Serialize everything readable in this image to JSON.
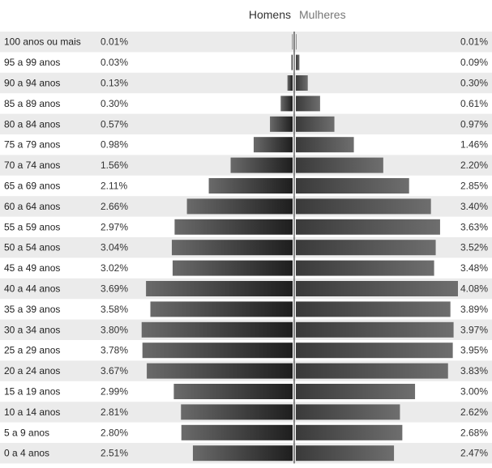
{
  "legend": {
    "male": "Homens",
    "female": "Mulheres"
  },
  "chart_data": {
    "type": "bar",
    "orientation": "horizontal-pyramid",
    "categories": [
      "100 anos ou mais",
      "95 a 99 anos",
      "90 a 94 anos",
      "85 a 89 anos",
      "80 a 84 anos",
      "75 a 79 anos",
      "70 a 74 anos",
      "65 a 69 anos",
      "60 a 64 anos",
      "55 a 59 anos",
      "50 a 54 anos",
      "45 a 49 anos",
      "40 a 44 anos",
      "35 a 39 anos",
      "30 a 34 anos",
      "25 a 29 anos",
      "20 a 24 anos",
      "15 a 19 anos",
      "10 a 14 anos",
      "5 a 9 anos",
      "0 a 4 anos"
    ],
    "series": [
      {
        "name": "Homens",
        "values": [
          0.01,
          0.03,
          0.13,
          0.3,
          0.57,
          0.98,
          1.56,
          2.11,
          2.66,
          2.97,
          3.04,
          3.02,
          3.69,
          3.58,
          3.8,
          3.78,
          3.67,
          2.99,
          2.81,
          2.8,
          2.51
        ],
        "labels": [
          "0.01%",
          "0.03%",
          "0.13%",
          "0.30%",
          "0.57%",
          "0.98%",
          "1.56%",
          "2.11%",
          "2.66%",
          "2.97%",
          "3.04%",
          "3.02%",
          "3.69%",
          "3.58%",
          "3.80%",
          "3.78%",
          "3.67%",
          "2.99%",
          "2.81%",
          "2.80%",
          "2.51%"
        ],
        "color": "#333333"
      },
      {
        "name": "Mulheres",
        "values": [
          0.01,
          0.09,
          0.3,
          0.61,
          0.97,
          1.46,
          2.2,
          2.85,
          3.4,
          3.63,
          3.52,
          3.48,
          4.08,
          3.89,
          3.97,
          3.95,
          3.83,
          3.0,
          2.62,
          2.68,
          2.47
        ],
        "labels": [
          "0.01%",
          "0.09%",
          "0.30%",
          "0.61%",
          "0.97%",
          "1.46%",
          "2.20%",
          "2.85%",
          "3.40%",
          "3.63%",
          "3.52%",
          "3.48%",
          "4.08%",
          "3.89%",
          "3.97%",
          "3.95%",
          "3.83%",
          "3.00%",
          "2.62%",
          "2.68%",
          "2.47%"
        ],
        "color": "#5a5a5a"
      }
    ],
    "xlabel": "",
    "ylabel": "",
    "stripe_color": "#ebebeb"
  }
}
